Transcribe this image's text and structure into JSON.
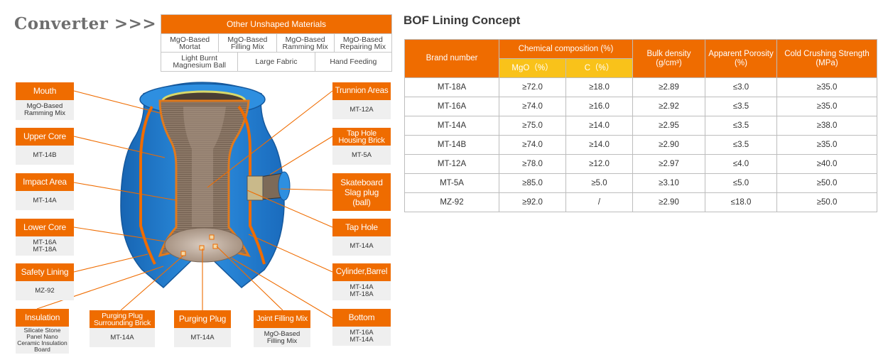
{
  "title": "Converter >>>",
  "other_materials": {
    "header": "Other Unshaped Materials",
    "row1": [
      "MgO-Based\nMortat",
      "MgO-Based\nFilling Mix",
      "MgO-Based\nRamming Mix",
      "MgO-Based\nRepairing Mix"
    ],
    "row2": [
      "Light Burnt\nMagnesium Ball",
      "Large Fabric",
      "Hand Feeding"
    ]
  },
  "labels": {
    "mouth": {
      "title": "Mouth",
      "value": "MgO-Based\nRamming Mix"
    },
    "upper_core": {
      "title": "Upper Core",
      "value": "MT-14B"
    },
    "impact_area": {
      "title": "Impact Area",
      "value": "MT-14A"
    },
    "lower_core": {
      "title": "Lower Core",
      "value": "MT-16A\nMT-18A"
    },
    "safety_lining": {
      "title": "Safety  Lining",
      "value": "MZ-92"
    },
    "insulation": {
      "title": "Insulation",
      "value": "Silicate Stone\nPanel Nano\nCeramic Insulation\nBoard"
    },
    "purging_plug_brick": {
      "title": "Purging Plug\nSurrounding Brick",
      "value": "MT-14A"
    },
    "purging_plug": {
      "title": "Purging Plug",
      "value": "MT-14A"
    },
    "joint_filling": {
      "title": "Joint Filling Mix",
      "value": "MgO-Based\nFilling Mix"
    },
    "trunnion": {
      "title": "Trunnion Areas",
      "value": "MT-12A"
    },
    "tap_hole_housing": {
      "title": "Tap Hole\nHousing Brick",
      "value": "MT-5A"
    },
    "skateboard": {
      "title": "Skateboard\nSlag plug\n(ball)",
      "value": ""
    },
    "tap_hole": {
      "title": "Tap Hole",
      "value": "MT-14A"
    },
    "cylinder": {
      "title": "Cylinder,Barrel",
      "value": "MT-14A\nMT-18A"
    },
    "bottom": {
      "title": "Bottom",
      "value": "MT-16A\nMT-14A"
    }
  },
  "bof": {
    "title": "BOF Lining Concept",
    "headers": {
      "brand": "Brand number",
      "chem": "Chemical composition (%)",
      "mgo": "MgO（%）",
      "c": "C（%）",
      "density": "Bulk density\n(g/cm³)",
      "porosity": "Apparent Porosity\n(%)",
      "strength": "Cold Crushing Strength\n(MPa)"
    },
    "rows": [
      [
        "MT-18A",
        "≥72.0",
        "≥18.0",
        "≥2.89",
        "≤3.0",
        "≥35.0"
      ],
      [
        "MT-16A",
        "≥74.0",
        "≥16.0",
        "≥2.92",
        "≤3.5",
        "≥35.0"
      ],
      [
        "MT-14A",
        "≥75.0",
        "≥14.0",
        "≥2.95",
        "≤3.5",
        "≥38.0"
      ],
      [
        "MT-14B",
        "≥74.0",
        "≥14.0",
        "≥2.90",
        "≤3.5",
        "≥35.0"
      ],
      [
        "MT-12A",
        "≥78.0",
        "≥12.0",
        "≥2.97",
        "≤4.0",
        "≥40.0"
      ],
      [
        "MT-5A",
        "≥85.0",
        "≥5.0",
        "≥3.10",
        "≤5.0",
        "≥50.0"
      ],
      [
        "MZ-92",
        "≥92.0",
        "/",
        "≥2.90",
        "≤18.0",
        "≥50.0"
      ]
    ]
  },
  "colors": {
    "accent": "#ef6c00",
    "sub_header": "#f9c21a",
    "shell": "#1f7fd1"
  }
}
